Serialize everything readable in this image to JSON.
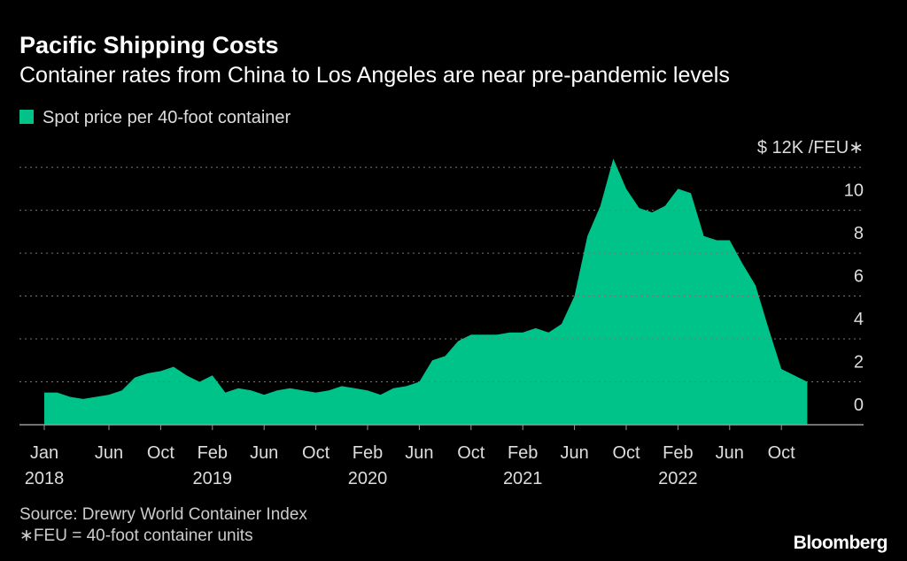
{
  "chart_data": {
    "type": "area",
    "title": "Pacific Shipping Costs",
    "subtitle": "Container rates from China to Los Angeles are near pre-pandemic levels",
    "x": [
      "2018-01",
      "2018-02",
      "2018-03",
      "2018-04",
      "2018-05",
      "2018-06",
      "2018-07",
      "2018-08",
      "2018-09",
      "2018-10",
      "2018-11",
      "2018-12",
      "2019-01",
      "2019-02",
      "2019-03",
      "2019-04",
      "2019-05",
      "2019-06",
      "2019-07",
      "2019-08",
      "2019-09",
      "2019-10",
      "2019-11",
      "2019-12",
      "2020-01",
      "2020-02",
      "2020-03",
      "2020-04",
      "2020-05",
      "2020-06",
      "2020-07",
      "2020-08",
      "2020-09",
      "2020-10",
      "2020-11",
      "2020-12",
      "2021-01",
      "2021-02",
      "2021-03",
      "2021-04",
      "2021-05",
      "2021-06",
      "2021-07",
      "2021-08",
      "2021-09",
      "2021-10",
      "2021-11",
      "2021-12",
      "2022-01",
      "2022-02",
      "2022-03",
      "2022-04",
      "2022-05",
      "2022-06",
      "2022-07",
      "2022-08",
      "2022-09",
      "2022-10",
      "2022-11",
      "2022-12"
    ],
    "series": [
      {
        "name": "Spot price per 40-foot container",
        "color": "#00c389",
        "values": [
          1.5,
          1.5,
          1.3,
          1.2,
          1.3,
          1.4,
          1.6,
          2.2,
          2.4,
          2.5,
          2.7,
          2.3,
          2.0,
          2.3,
          1.5,
          1.7,
          1.6,
          1.4,
          1.6,
          1.7,
          1.6,
          1.5,
          1.6,
          1.8,
          1.7,
          1.6,
          1.4,
          1.7,
          1.8,
          2.0,
          3.0,
          3.2,
          3.9,
          4.2,
          4.2,
          4.2,
          4.3,
          4.3,
          4.5,
          4.3,
          4.7,
          6.0,
          8.8,
          10.2,
          12.4,
          11.0,
          10.1,
          9.9,
          10.2,
          11.0,
          10.8,
          8.8,
          8.6,
          8.6,
          7.5,
          6.5,
          4.5,
          2.6,
          2.3,
          2.0
        ]
      }
    ],
    "xticks": [
      {
        "value": "2018-01",
        "label": "Jan"
      },
      {
        "value": "2018-06",
        "label": "Jun"
      },
      {
        "value": "2018-10",
        "label": "Oct"
      },
      {
        "value": "2019-02",
        "label": "Feb"
      },
      {
        "value": "2019-06",
        "label": "Jun"
      },
      {
        "value": "2019-10",
        "label": "Oct"
      },
      {
        "value": "2020-02",
        "label": "Feb"
      },
      {
        "value": "2020-06",
        "label": "Jun"
      },
      {
        "value": "2020-10",
        "label": "Oct"
      },
      {
        "value": "2021-02",
        "label": "Feb"
      },
      {
        "value": "2021-06",
        "label": "Jun"
      },
      {
        "value": "2021-10",
        "label": "Oct"
      },
      {
        "value": "2022-02",
        "label": "Feb"
      },
      {
        "value": "2022-06",
        "label": "Jun"
      },
      {
        "value": "2022-10",
        "label": "Oct"
      }
    ],
    "xtick_years": [
      {
        "value": "2018-01",
        "label": "2018"
      },
      {
        "value": "2019-02",
        "label": "2019"
      },
      {
        "value": "2020-02",
        "label": "2020"
      },
      {
        "value": "2021-02",
        "label": "2021"
      },
      {
        "value": "2022-02",
        "label": "2022"
      }
    ],
    "ylim": [
      0,
      12.5
    ],
    "yticks": [
      0,
      2,
      4,
      6,
      8,
      10,
      {
        "value": 12,
        "label": "$ 12K /FEU∗"
      }
    ],
    "grid": true,
    "source": "Source: Drewry World Container Index",
    "note": "∗FEU = 40-foot container units",
    "brand": "Bloomberg"
  }
}
